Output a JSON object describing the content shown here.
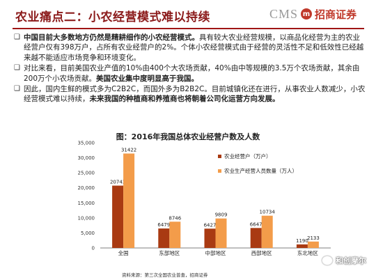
{
  "header": {
    "title": "农业痛点二：小农经营模式难以持续",
    "logo_cms": "CMS",
    "logo_mark": "m",
    "logo_cn": "招商证券"
  },
  "bullets": [
    {
      "marker": "❑",
      "parts": [
        {
          "text": "中国目前大多数地方仍然是精耕细作的小农经营模式。",
          "bold": true
        },
        {
          "text": "具有较大农业经营规模，以商品化经营为主的农业经营户仅有398万户，占所有农业经营户的2%。个体小农经营模式由于经营的灵活性不足和低效性已经越来越不能适应市场竞争和环境变化。",
          "bold": false
        }
      ]
    },
    {
      "marker": "❑",
      "parts": [
        {
          "text": "对比来看，目前美国农业产值的10%由400个大农场贡献，40%由中等规模的3.5万个农场贡献，其余由200万个小农场贡献。",
          "bold": false
        },
        {
          "text": "美国农业集中度明显高于我国。",
          "bold": true
        }
      ]
    },
    {
      "marker": "❑",
      "parts": [
        {
          "text": "因此，国内生鲜的模式多为C2B2C，而国外多为B2B2C。目前城镇化还在进行，从事农业人数减少，小农经营模式难以持续，",
          "bold": false
        },
        {
          "text": "未来我国的种植商和养殖商也将朝着公司化运营方向发展。",
          "bold": true
        }
      ]
    }
  ],
  "chart_data": {
    "type": "bar",
    "title": "图：2016年我国总体农业经营户数及人数",
    "categories": [
      "全国",
      "东部地区",
      "中部地区",
      "西部地区",
      "东北地区"
    ],
    "series": [
      {
        "name": "农业经营户（万户）",
        "values": [
          20743,
          6479,
          6427,
          6647,
          1190
        ],
        "color": "#a93a12"
      },
      {
        "name": "农业生产经营人员数量（万人）",
        "values": [
          31422,
          8746,
          9809,
          10734,
          2133
        ],
        "color": "#f39c4a"
      }
    ],
    "ylim": [
      0,
      35000
    ],
    "yticks": [
      "0",
      "5,000",
      "10,000",
      "15,000",
      "20,000",
      "25,000",
      "30,000",
      "35,000"
    ],
    "legend_position": "top-right",
    "grid": false
  },
  "source": "资料来源：第三次全国农业普查，招商证券",
  "watermark": "和创摩尔",
  "colors": {
    "title_red": "#8b1a1a",
    "rule_red": "#a01515",
    "dark_bar": "#a93a12",
    "light_bar": "#f39c4a"
  }
}
